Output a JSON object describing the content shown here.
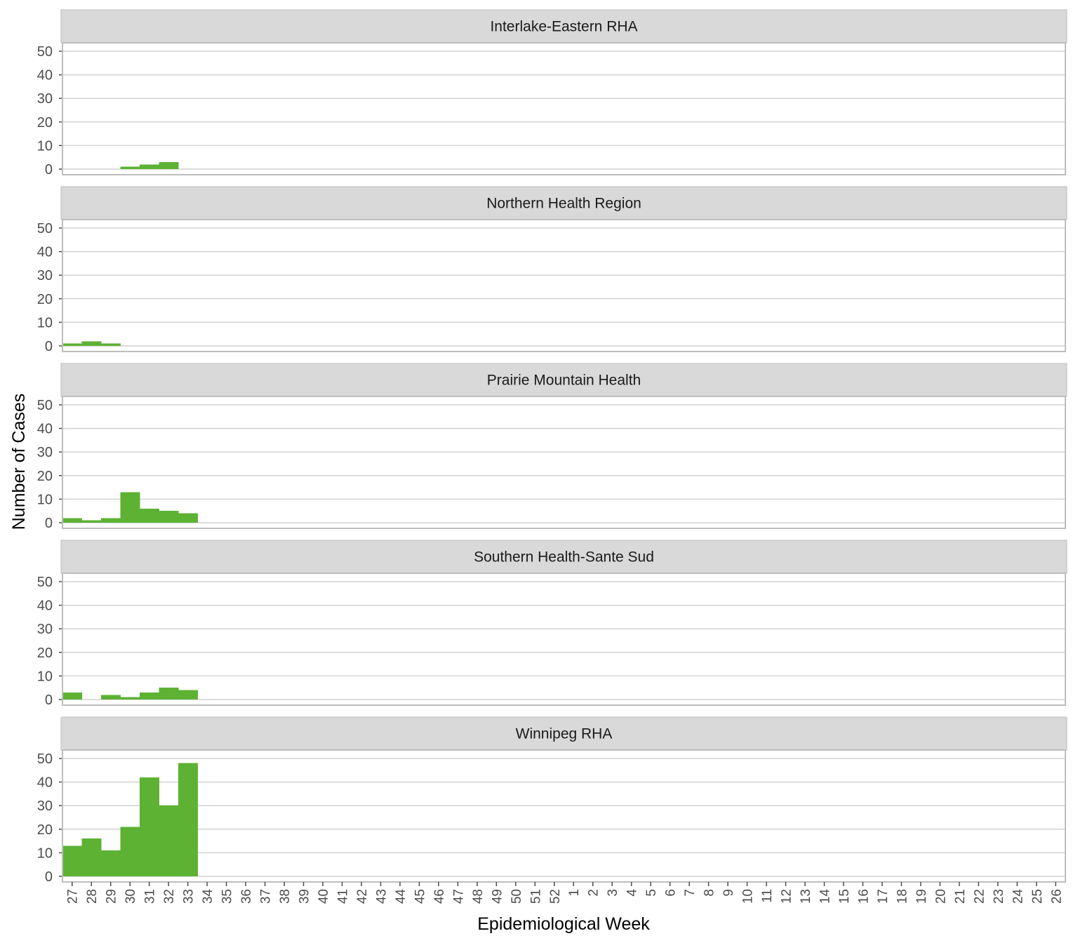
{
  "chart_data": {
    "type": "bar",
    "xlabel": "Epidemiological Week",
    "ylabel": "Number of Cases",
    "ylim": [
      0,
      50
    ],
    "yticks": [
      0,
      10,
      20,
      30,
      40,
      50
    ],
    "bar_color": "#5db234",
    "strip_color": "#d9d9d9",
    "grid": true,
    "categories": [
      "27",
      "28",
      "29",
      "30",
      "31",
      "32",
      "33",
      "34",
      "35",
      "36",
      "37",
      "38",
      "39",
      "40",
      "41",
      "42",
      "43",
      "44",
      "45",
      "46",
      "47",
      "48",
      "49",
      "50",
      "51",
      "52",
      "1",
      "2",
      "3",
      "4",
      "5",
      "6",
      "7",
      "8",
      "9",
      "10",
      "11",
      "12",
      "13",
      "14",
      "15",
      "16",
      "17",
      "18",
      "19",
      "20",
      "21",
      "22",
      "23",
      "24",
      "25",
      "26"
    ],
    "panels": [
      {
        "name": "Interlake-Eastern RHA",
        "values": [
          0,
          0,
          0,
          1,
          2,
          3,
          0,
          0,
          0,
          0,
          0,
          0,
          0,
          0,
          0,
          0,
          0,
          0,
          0,
          0,
          0,
          0,
          0,
          0,
          0,
          0,
          0,
          0,
          0,
          0,
          0,
          0,
          0,
          0,
          0,
          0,
          0,
          0,
          0,
          0,
          0,
          0,
          0,
          0,
          0,
          0,
          0,
          0,
          0,
          0,
          0,
          0
        ]
      },
      {
        "name": "Northern Health Region",
        "values": [
          1,
          2,
          1,
          0,
          0,
          0,
          0,
          0,
          0,
          0,
          0,
          0,
          0,
          0,
          0,
          0,
          0,
          0,
          0,
          0,
          0,
          0,
          0,
          0,
          0,
          0,
          0,
          0,
          0,
          0,
          0,
          0,
          0,
          0,
          0,
          0,
          0,
          0,
          0,
          0,
          0,
          0,
          0,
          0,
          0,
          0,
          0,
          0,
          0,
          0,
          0,
          0
        ]
      },
      {
        "name": "Prairie Mountain Health",
        "values": [
          2,
          1,
          2,
          13,
          6,
          5,
          4,
          0,
          0,
          0,
          0,
          0,
          0,
          0,
          0,
          0,
          0,
          0,
          0,
          0,
          0,
          0,
          0,
          0,
          0,
          0,
          0,
          0,
          0,
          0,
          0,
          0,
          0,
          0,
          0,
          0,
          0,
          0,
          0,
          0,
          0,
          0,
          0,
          0,
          0,
          0,
          0,
          0,
          0,
          0,
          0,
          0
        ]
      },
      {
        "name": "Southern Health-Sante Sud",
        "values": [
          3,
          0,
          2,
          1,
          3,
          5,
          4,
          0,
          0,
          0,
          0,
          0,
          0,
          0,
          0,
          0,
          0,
          0,
          0,
          0,
          0,
          0,
          0,
          0,
          0,
          0,
          0,
          0,
          0,
          0,
          0,
          0,
          0,
          0,
          0,
          0,
          0,
          0,
          0,
          0,
          0,
          0,
          0,
          0,
          0,
          0,
          0,
          0,
          0,
          0,
          0,
          0
        ]
      },
      {
        "name": "Winnipeg RHA",
        "values": [
          13,
          16,
          11,
          21,
          42,
          30,
          48,
          0,
          0,
          0,
          0,
          0,
          0,
          0,
          0,
          0,
          0,
          0,
          0,
          0,
          0,
          0,
          0,
          0,
          0,
          0,
          0,
          0,
          0,
          0,
          0,
          0,
          0,
          0,
          0,
          0,
          0,
          0,
          0,
          0,
          0,
          0,
          0,
          0,
          0,
          0,
          0,
          0,
          0,
          0,
          0,
          0
        ]
      }
    ]
  }
}
